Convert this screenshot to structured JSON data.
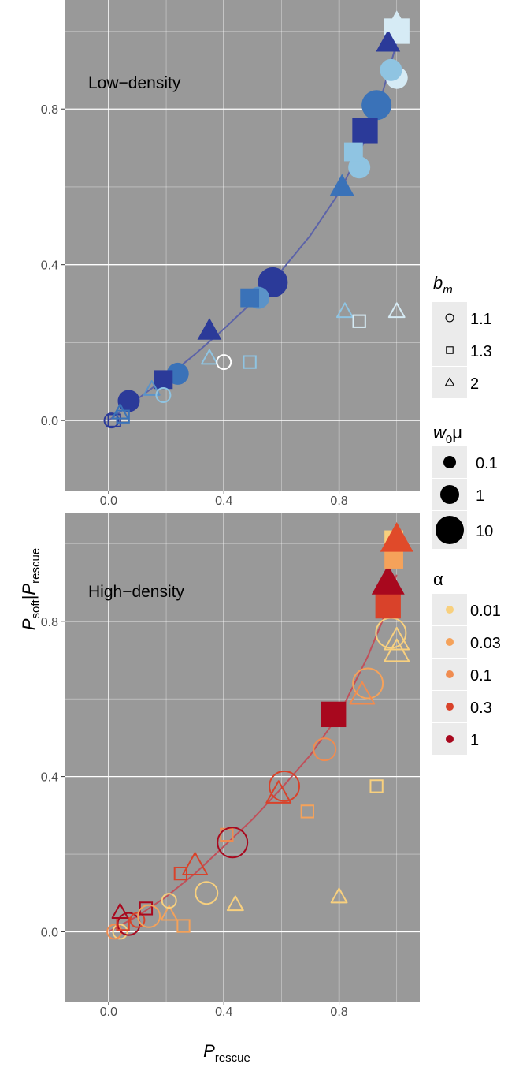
{
  "chart_data": [
    {
      "type": "scatter",
      "panel": "low",
      "title": "Low−density",
      "xlim": [
        -0.15,
        1.08
      ],
      "ylim": [
        -0.18,
        1.08
      ],
      "xticks": [
        "0.0",
        "0.4",
        "0.8"
      ],
      "yticks": [
        "0.0",
        "0.4",
        "0.8"
      ],
      "points": [
        {
          "x": 0.07,
          "y": 0.05,
          "shape": "circle",
          "filled": true,
          "size": 1,
          "color": "#2b3a99"
        },
        {
          "x": 0.24,
          "y": 0.12,
          "shape": "circle",
          "filled": true,
          "size": 1,
          "color": "#3a72b8"
        },
        {
          "x": 0.57,
          "y": 0.355,
          "shape": "circle",
          "filled": true,
          "size": 2,
          "color": "#2b3a99"
        },
        {
          "x": 0.52,
          "y": 0.315,
          "shape": "circle",
          "filled": true,
          "size": 1,
          "color": "#5b93c8"
        },
        {
          "x": 0.87,
          "y": 0.65,
          "shape": "circle",
          "filled": true,
          "size": 1,
          "color": "#8fc4e2"
        },
        {
          "x": 0.93,
          "y": 0.81,
          "shape": "circle",
          "filled": true,
          "size": 2,
          "color": "#3a72b8"
        },
        {
          "x": 1.0,
          "y": 0.88,
          "shape": "circle",
          "filled": true,
          "size": 1,
          "color": "#d6ebf5"
        },
        {
          "x": 0.98,
          "y": 0.9,
          "shape": "circle",
          "filled": true,
          "size": 1,
          "color": "#8fc4e2"
        },
        {
          "x": 0.19,
          "y": 0.105,
          "shape": "square",
          "filled": true,
          "size": 1,
          "color": "#2b3a99"
        },
        {
          "x": 0.49,
          "y": 0.315,
          "shape": "square",
          "filled": true,
          "size": 1,
          "color": "#3a72b8"
        },
        {
          "x": 0.89,
          "y": 0.745,
          "shape": "square",
          "filled": true,
          "size": 2,
          "color": "#2b3a99"
        },
        {
          "x": 0.85,
          "y": 0.69,
          "shape": "square",
          "filled": true,
          "size": 1,
          "color": "#8fc4e2"
        },
        {
          "x": 1.0,
          "y": 1.0,
          "shape": "square",
          "filled": true,
          "size": 2,
          "color": "#d6ebf5"
        },
        {
          "x": 0.35,
          "y": 0.23,
          "shape": "triangle",
          "filled": true,
          "size": 1,
          "color": "#2b3a99"
        },
        {
          "x": 0.81,
          "y": 0.6,
          "shape": "triangle",
          "filled": true,
          "size": 1,
          "color": "#3a72b8"
        },
        {
          "x": 0.97,
          "y": 0.97,
          "shape": "triangle",
          "filled": true,
          "size": 1,
          "color": "#2b3a99"
        },
        {
          "x": 1.0,
          "y": 1.02,
          "shape": "triangle",
          "filled": true,
          "size": 1,
          "color": "#d6ebf5"
        },
        {
          "x": 0.01,
          "y": 0.0,
          "shape": "circle",
          "filled": false,
          "size": 0,
          "color": "#2b3a99"
        },
        {
          "x": 0.02,
          "y": 0.0,
          "shape": "square",
          "filled": false,
          "size": 0,
          "color": "#2b3a99"
        },
        {
          "x": 0.05,
          "y": 0.01,
          "shape": "square",
          "filled": false,
          "size": 0,
          "color": "#3a72b8"
        },
        {
          "x": 0.04,
          "y": 0.02,
          "shape": "triangle",
          "filled": false,
          "size": 0,
          "color": "#3a72b8"
        },
        {
          "x": 0.15,
          "y": 0.08,
          "shape": "triangle",
          "filled": false,
          "size": 0,
          "color": "#5b93c8"
        },
        {
          "x": 0.19,
          "y": 0.065,
          "shape": "circle",
          "filled": false,
          "size": 0,
          "color": "#8fc4e2"
        },
        {
          "x": 0.35,
          "y": 0.16,
          "shape": "triangle",
          "filled": false,
          "size": 0,
          "color": "#8fc4e2"
        },
        {
          "x": 0.4,
          "y": 0.15,
          "shape": "circle",
          "filled": false,
          "size": 0,
          "color": "#ffffff"
        },
        {
          "x": 0.49,
          "y": 0.15,
          "shape": "square",
          "filled": false,
          "size": 0,
          "color": "#8fc4e2"
        },
        {
          "x": 0.82,
          "y": 0.28,
          "shape": "triangle",
          "filled": false,
          "size": 0,
          "color": "#8fc4e2"
        },
        {
          "x": 0.87,
          "y": 0.255,
          "shape": "square",
          "filled": false,
          "size": 0,
          "color": "#d6ebf5"
        },
        {
          "x": 1.0,
          "y": 0.28,
          "shape": "triangle",
          "filled": false,
          "size": 0,
          "color": "#d6ebf5"
        }
      ],
      "curve_color": "#5c63a8",
      "curve": {
        "x": [
          0,
          0.1,
          0.2,
          0.3,
          0.4,
          0.5,
          0.6,
          0.7,
          0.8,
          0.9,
          0.95,
          1.0
        ],
        "y": [
          0,
          0.055,
          0.11,
          0.17,
          0.235,
          0.305,
          0.385,
          0.475,
          0.585,
          0.735,
          0.84,
          0.97
        ]
      }
    },
    {
      "type": "scatter",
      "panel": "high",
      "title": "High−density",
      "xlim": [
        -0.15,
        1.08
      ],
      "ylim": [
        -0.18,
        1.08
      ],
      "xticks": [
        "0.0",
        "0.4",
        "0.8"
      ],
      "yticks": [
        "0.0",
        "0.4",
        "0.8"
      ],
      "points": [
        {
          "x": 0.04,
          "y": 0.0,
          "shape": "circle",
          "filled": false,
          "size": 0,
          "color": "#f8d07e"
        },
        {
          "x": 0.02,
          "y": 0.0,
          "shape": "circle",
          "filled": false,
          "size": 0,
          "color": "#f08c50"
        },
        {
          "x": 0.07,
          "y": 0.02,
          "shape": "circle",
          "filled": false,
          "size": 1,
          "color": "#a8081e"
        },
        {
          "x": 0.1,
          "y": 0.03,
          "shape": "circle",
          "filled": false,
          "size": 0,
          "color": "#d9422a"
        },
        {
          "x": 0.05,
          "y": 0.02,
          "shape": "square",
          "filled": false,
          "size": 0,
          "color": "#d9422a"
        },
        {
          "x": 0.04,
          "y": 0.05,
          "shape": "triangle",
          "filled": false,
          "size": 0,
          "color": "#a8081e"
        },
        {
          "x": 0.13,
          "y": 0.06,
          "shape": "square",
          "filled": false,
          "size": 0,
          "color": "#a8081e"
        },
        {
          "x": 0.14,
          "y": 0.04,
          "shape": "circle",
          "filled": false,
          "size": 1,
          "color": "#f5a25a"
        },
        {
          "x": 0.21,
          "y": 0.045,
          "shape": "triangle",
          "filled": false,
          "size": 0,
          "color": "#f5a25a"
        },
        {
          "x": 0.21,
          "y": 0.08,
          "shape": "circle",
          "filled": false,
          "size": 0,
          "color": "#f8d07e"
        },
        {
          "x": 0.26,
          "y": 0.015,
          "shape": "square",
          "filled": false,
          "size": 0,
          "color": "#f5a25a"
        },
        {
          "x": 0.25,
          "y": 0.15,
          "shape": "square",
          "filled": false,
          "size": 0,
          "color": "#d9422a"
        },
        {
          "x": 0.3,
          "y": 0.17,
          "shape": "triangle",
          "filled": false,
          "size": 1,
          "color": "#d9422a"
        },
        {
          "x": 0.34,
          "y": 0.1,
          "shape": "circle",
          "filled": false,
          "size": 1,
          "color": "#f8d07e"
        },
        {
          "x": 0.41,
          "y": 0.25,
          "shape": "square",
          "filled": false,
          "size": 0,
          "color": "#f08c50"
        },
        {
          "x": 0.43,
          "y": 0.23,
          "shape": "circle",
          "filled": false,
          "size": 2,
          "color": "#a8081e"
        },
        {
          "x": 0.44,
          "y": 0.07,
          "shape": "triangle",
          "filled": false,
          "size": 0,
          "color": "#f8d07e"
        },
        {
          "x": 0.59,
          "y": 0.355,
          "shape": "triangle",
          "filled": false,
          "size": 1,
          "color": "#d9422a"
        },
        {
          "x": 0.61,
          "y": 0.375,
          "shape": "circle",
          "filled": false,
          "size": 2,
          "color": "#d9422a"
        },
        {
          "x": 0.69,
          "y": 0.31,
          "shape": "square",
          "filled": false,
          "size": 0,
          "color": "#f5a25a"
        },
        {
          "x": 0.75,
          "y": 0.47,
          "shape": "circle",
          "filled": false,
          "size": 1,
          "color": "#f08c50"
        },
        {
          "x": 0.8,
          "y": 0.09,
          "shape": "triangle",
          "filled": false,
          "size": 0,
          "color": "#f8d07e"
        },
        {
          "x": 0.9,
          "y": 0.64,
          "shape": "circle",
          "filled": false,
          "size": 2,
          "color": "#f5a25a"
        },
        {
          "x": 0.88,
          "y": 0.61,
          "shape": "triangle",
          "filled": false,
          "size": 1,
          "color": "#f08c50"
        },
        {
          "x": 0.93,
          "y": 0.375,
          "shape": "square",
          "filled": false,
          "size": 0,
          "color": "#f8d07e"
        },
        {
          "x": 0.98,
          "y": 0.77,
          "shape": "circle",
          "filled": false,
          "size": 2,
          "color": "#f8d07e"
        },
        {
          "x": 1.0,
          "y": 0.75,
          "shape": "triangle",
          "filled": false,
          "size": 1,
          "color": "#f8d07e"
        },
        {
          "x": 1.0,
          "y": 0.72,
          "shape": "triangle",
          "filled": false,
          "size": 1,
          "color": "#f8d07e"
        },
        {
          "x": 0.78,
          "y": 0.56,
          "shape": "square",
          "filled": true,
          "size": 2,
          "color": "#a8081e"
        },
        {
          "x": 0.97,
          "y": 0.84,
          "shape": "square",
          "filled": true,
          "size": 2,
          "color": "#d9422a"
        },
        {
          "x": 0.97,
          "y": 0.9,
          "shape": "triangle",
          "filled": true,
          "size": 2,
          "color": "#a8081e"
        },
        {
          "x": 0.99,
          "y": 0.96,
          "shape": "square",
          "filled": true,
          "size": 1,
          "color": "#f5a25a"
        },
        {
          "x": 0.99,
          "y": 1.01,
          "shape": "square",
          "filled": true,
          "size": 1,
          "color": "#f8d07e"
        },
        {
          "x": 1.0,
          "y": 1.01,
          "shape": "triangle",
          "filled": true,
          "size": 2,
          "color": "#e04a2a"
        }
      ],
      "curve_color": "#c0505a",
      "curve": {
        "x": [
          0,
          0.1,
          0.2,
          0.3,
          0.4,
          0.5,
          0.6,
          0.7,
          0.8,
          0.9,
          0.95,
          1.0
        ],
        "y": [
          0,
          0.04,
          0.09,
          0.15,
          0.22,
          0.29,
          0.37,
          0.455,
          0.56,
          0.71,
          0.8,
          0.92
        ]
      }
    }
  ],
  "axes": {
    "ylabel_main": "P",
    "ylabel_sub1": "soft",
    "ylabel_bar": "|",
    "ylabel_main2": "P",
    "ylabel_sub2": "rescue",
    "xlabel_main": "P",
    "xlabel_sub": "rescue"
  },
  "legend": {
    "bm": {
      "title_main": "b",
      "title_sub": "m",
      "items": [
        {
          "shape": "circle",
          "label": "1.1"
        },
        {
          "shape": "square",
          "label": "1.3"
        },
        {
          "shape": "triangle",
          "label": "2"
        }
      ]
    },
    "w0mu": {
      "title_main": "w",
      "title_sub": "0",
      "title_tail": "μ",
      "items": [
        {
          "size": 0,
          "label": "0.1"
        },
        {
          "size": 1,
          "label": "1"
        },
        {
          "size": 2,
          "label": "10"
        }
      ]
    },
    "alpha": {
      "title": "α",
      "items": [
        {
          "color": "#f8d07e",
          "label": "0.01"
        },
        {
          "color": "#f5a25a",
          "label": "0.03"
        },
        {
          "color": "#f08c50",
          "label": "0.1"
        },
        {
          "color": "#d9422a",
          "label": "0.3"
        },
        {
          "color": "#a8081e",
          "label": "1"
        }
      ]
    }
  },
  "colors": {
    "panel_bg": "#999999",
    "grid": "#ffffff",
    "legend_key_bg": "#ebebeb"
  }
}
